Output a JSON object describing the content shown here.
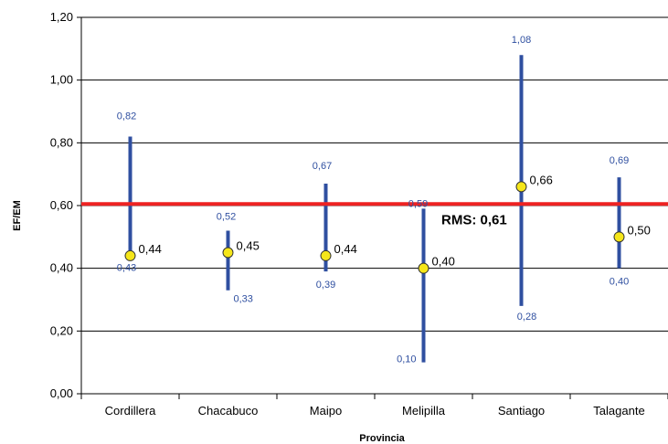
{
  "chart_data": {
    "type": "scatter",
    "xlabel": "Provincia",
    "ylabel": "EF/EM",
    "ylim": [
      0,
      1.2
    ],
    "yticks": [
      "0,00",
      "0,20",
      "0,40",
      "0,60",
      "0,80",
      "1,00",
      "1,20"
    ],
    "ytick_values": [
      0,
      0.2,
      0.4,
      0.6,
      0.8,
      1.0,
      1.2
    ],
    "grid": true,
    "categories": [
      "Cordillera",
      "Chacabuco",
      "Maipo",
      "Melipilla",
      "Santiago",
      "Talagante"
    ],
    "series": [
      {
        "values": [
          0.44,
          0.45,
          0.44,
          0.4,
          0.66,
          0.5
        ],
        "labels": [
          "0,44",
          "0,45",
          "0,44",
          "0,40",
          "0,66",
          "0,50"
        ]
      }
    ],
    "ranges": [
      {
        "max": 0.82,
        "min": 0.43,
        "max_label": "0,82",
        "min_label": "0,43"
      },
      {
        "max": 0.52,
        "min": 0.33,
        "max_label": "0,52",
        "min_label": "0,33"
      },
      {
        "max": 0.67,
        "min": 0.39,
        "max_label": "0,67",
        "min_label": "0,39"
      },
      {
        "max": 0.59,
        "min": 0.1,
        "max_label": "0,59",
        "min_label": "0,10"
      },
      {
        "max": 1.08,
        "min": 0.28,
        "max_label": "1,08",
        "min_label": "0,28"
      },
      {
        "max": 0.69,
        "min": 0.4,
        "max_label": "0,69",
        "min_label": "0,40"
      }
    ],
    "reference_line": {
      "value": 0.605,
      "label": "RMS: 0,61",
      "color": "#ee2222"
    },
    "colors": {
      "range": "#2f4fa0",
      "marker_fill": "#f5e61a",
      "marker_stroke": "#333333"
    }
  }
}
